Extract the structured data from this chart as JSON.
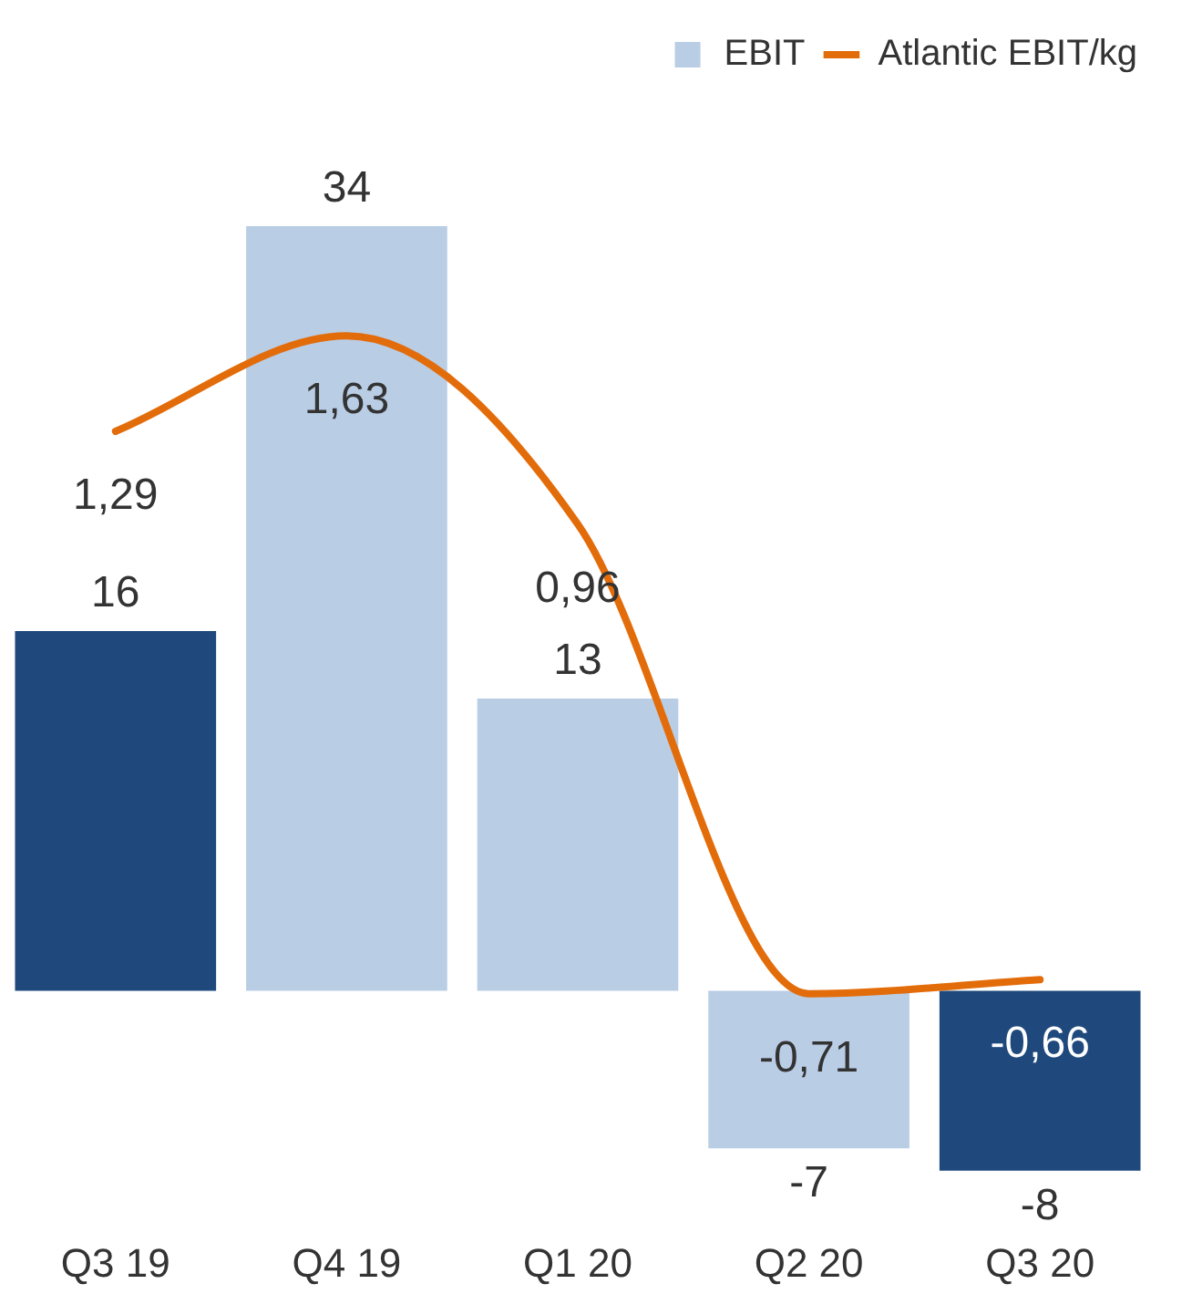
{
  "chart_data": {
    "type": "bar",
    "categories": [
      "Q3 19",
      "Q4 19",
      "Q1 20",
      "Q2 20",
      "Q3 20"
    ],
    "series": [
      {
        "name": "EBIT",
        "color": "#b9cde5",
        "colors": [
          "#1f497d",
          "#b9cde5",
          "#b9cde5",
          "#b9cde5",
          "#1f497d"
        ],
        "values": [
          16,
          34,
          13,
          -7,
          -8
        ]
      },
      {
        "name": "Atlantic EBIT/kg",
        "type": "line",
        "axis": "y2",
        "color": "#e36c0a",
        "values": [
          1.29,
          1.63,
          0.96,
          -0.71,
          -0.66
        ],
        "value_labels": [
          "1,29",
          "1,63",
          "0,96",
          "-0,71",
          "-0,66"
        ]
      }
    ],
    "data_labels": true,
    "legend": "top right",
    "grid": false,
    "tick_labels": "x",
    "marker": "none",
    "line_style": "solid"
  }
}
